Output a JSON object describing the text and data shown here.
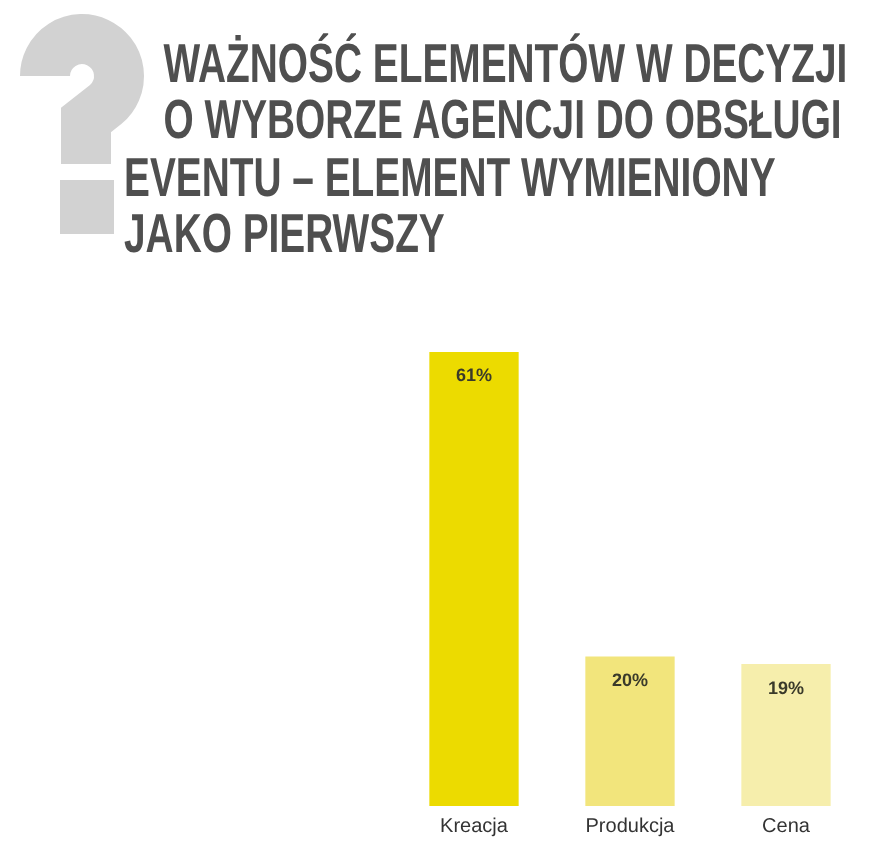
{
  "chart_data": {
    "type": "bar",
    "title": "WAŻNOŚĆ ELEMENTÓW W DECYZJI O WYBORZE AGENCJI DO OBSŁUGI EVENTU – ELEMENT WYMIENIONY JAKO PIERWSZY",
    "categories": [
      "Kreacja",
      "Produkcja",
      "Cena"
    ],
    "values": [
      61,
      20,
      19
    ],
    "value_labels": [
      "61%",
      "20%",
      "19%"
    ],
    "colors": [
      "#ecdb00",
      "#f2e57c",
      "#f6eeac"
    ],
    "tick_labels": "x"
  }
}
